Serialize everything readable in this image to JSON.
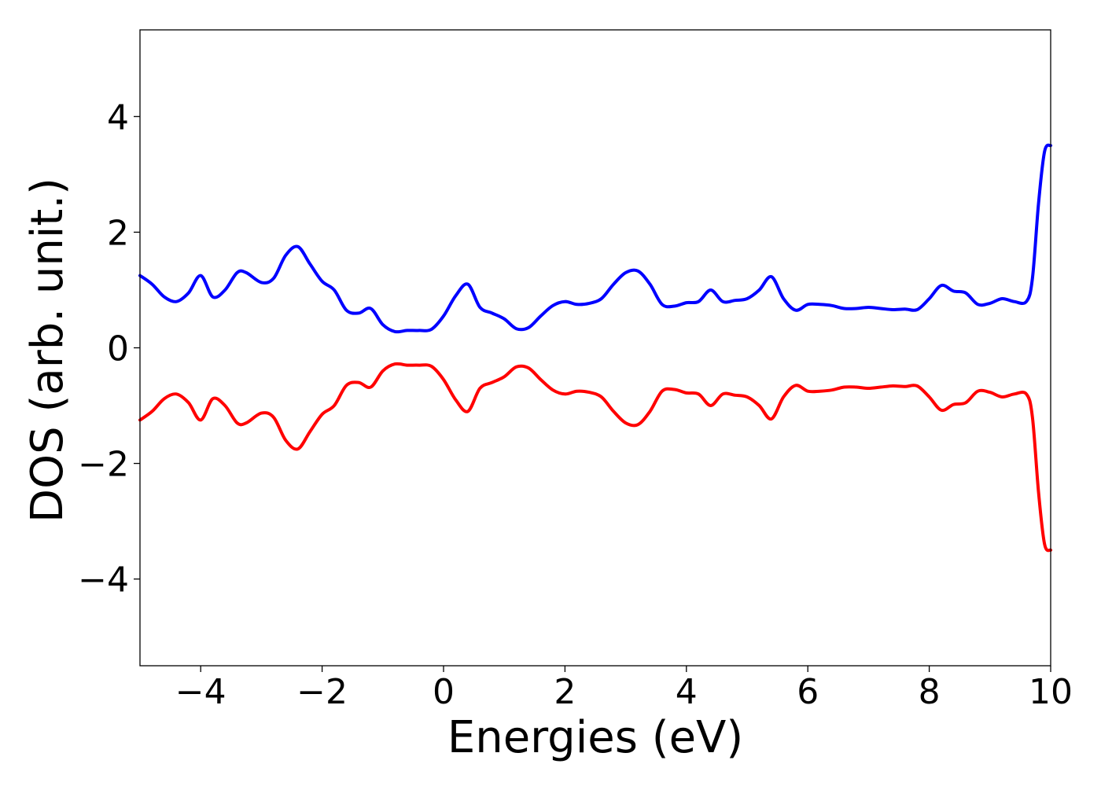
{
  "chart_data": {
    "type": "line",
    "title": "",
    "xlabel": "Energies (eV)",
    "ylabel": "DOS (arb. unit.)",
    "xlim": [
      -5,
      10
    ],
    "ylim": [
      -5.5,
      5.5
    ],
    "xticks": [
      -4,
      -2,
      0,
      2,
      4,
      6,
      8,
      10
    ],
    "xtick_labels": [
      "−4",
      "−2",
      "0",
      "2",
      "4",
      "6",
      "8",
      "10"
    ],
    "yticks": [
      -4,
      -2,
      0,
      2,
      4
    ],
    "ytick_labels": [
      "−4",
      "−2",
      "0",
      "2",
      "4"
    ],
    "grid": false,
    "legend": "none",
    "x": [
      -5.0,
      -4.8,
      -4.6,
      -4.4,
      -4.2,
      -4.0,
      -3.8,
      -3.6,
      -3.4,
      -3.25,
      -3.0,
      -2.8,
      -2.6,
      -2.4,
      -2.2,
      -2.0,
      -1.8,
      -1.6,
      -1.4,
      -1.2,
      -1.0,
      -0.8,
      -0.6,
      -0.4,
      -0.2,
      0.0,
      0.2,
      0.4,
      0.6,
      0.8,
      1.0,
      1.2,
      1.4,
      1.6,
      1.8,
      2.0,
      2.2,
      2.4,
      2.6,
      2.8,
      3.0,
      3.2,
      3.4,
      3.6,
      3.8,
      4.0,
      4.2,
      4.4,
      4.6,
      4.8,
      5.0,
      5.2,
      5.4,
      5.6,
      5.8,
      6.0,
      6.2,
      6.4,
      6.6,
      6.8,
      7.0,
      7.2,
      7.4,
      7.6,
      7.8,
      8.0,
      8.2,
      8.4,
      8.6,
      8.8,
      9.0,
      9.2,
      9.4,
      9.6,
      9.7,
      9.8,
      9.9,
      10.0
    ],
    "series": [
      {
        "color": "#0000ff",
        "values": [
          1.25,
          1.1,
          0.88,
          0.8,
          0.95,
          1.25,
          0.88,
          1.0,
          1.3,
          1.3,
          1.13,
          1.2,
          1.6,
          1.75,
          1.45,
          1.15,
          1.0,
          0.65,
          0.6,
          0.68,
          0.4,
          0.28,
          0.3,
          0.3,
          0.32,
          0.55,
          0.9,
          1.1,
          0.7,
          0.6,
          0.5,
          0.33,
          0.35,
          0.55,
          0.73,
          0.8,
          0.75,
          0.77,
          0.85,
          1.1,
          1.3,
          1.33,
          1.1,
          0.75,
          0.72,
          0.78,
          0.8,
          1.0,
          0.8,
          0.82,
          0.85,
          1.0,
          1.23,
          0.85,
          0.65,
          0.75,
          0.75,
          0.73,
          0.68,
          0.68,
          0.7,
          0.68,
          0.66,
          0.67,
          0.66,
          0.85,
          1.08,
          0.98,
          0.95,
          0.75,
          0.77,
          0.85,
          0.8,
          0.8,
          1.2,
          2.5,
          3.4,
          3.5
        ]
      },
      {
        "color": "#ff0000",
        "values": [
          -1.25,
          -1.1,
          -0.88,
          -0.8,
          -0.95,
          -1.25,
          -0.88,
          -1.0,
          -1.3,
          -1.3,
          -1.13,
          -1.2,
          -1.6,
          -1.75,
          -1.45,
          -1.15,
          -1.0,
          -0.65,
          -0.6,
          -0.68,
          -0.4,
          -0.28,
          -0.3,
          -0.3,
          -0.32,
          -0.55,
          -0.9,
          -1.1,
          -0.7,
          -0.6,
          -0.5,
          -0.33,
          -0.35,
          -0.55,
          -0.73,
          -0.8,
          -0.75,
          -0.77,
          -0.85,
          -1.1,
          -1.3,
          -1.33,
          -1.1,
          -0.75,
          -0.72,
          -0.78,
          -0.8,
          -1.0,
          -0.8,
          -0.82,
          -0.85,
          -1.0,
          -1.23,
          -0.85,
          -0.65,
          -0.75,
          -0.75,
          -0.73,
          -0.68,
          -0.68,
          -0.7,
          -0.68,
          -0.66,
          -0.67,
          -0.66,
          -0.85,
          -1.08,
          -0.98,
          -0.95,
          -0.75,
          -0.77,
          -0.85,
          -0.8,
          -0.8,
          -1.2,
          -2.5,
          -3.4,
          -3.5
        ]
      }
    ]
  }
}
